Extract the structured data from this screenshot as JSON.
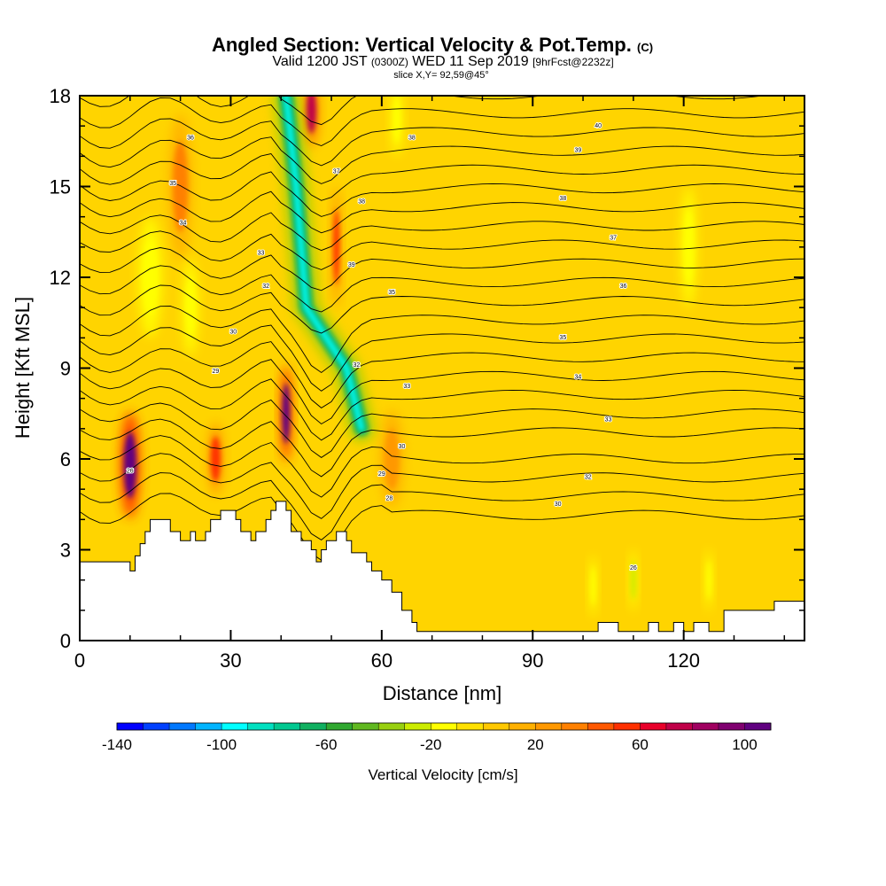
{
  "chart_data": {
    "type": "heatmap",
    "title": "Angled Section: Vertical Velocity & Pot.Temp.",
    "title_suffix": "(C)",
    "subtitle_prefix": "Valid 1200 JST",
    "subtitle_zulu": "(0300Z)",
    "subtitle_date": "WED 11 Sep 2019",
    "subtitle_fcst": "[9hrFcst@2232z]",
    "slice_label": "slice X,Y= 92,59@45°",
    "xlabel": "Distance [nm]",
    "ylabel": "Height [Kft MSL]",
    "xlim": [
      0,
      144
    ],
    "ylim": [
      0,
      18
    ],
    "x_ticks": [
      "0",
      "30",
      "60",
      "90",
      "120"
    ],
    "x_tick_values": [
      0,
      30,
      60,
      90,
      120
    ],
    "y_ticks": [
      "0",
      "3",
      "6",
      "9",
      "12",
      "15",
      "18"
    ],
    "y_tick_values": [
      0,
      3,
      6,
      9,
      12,
      15,
      18
    ],
    "colorbar": {
      "title": "Vertical Velocity [cm/s]",
      "min": -140,
      "max": 110,
      "step": 10,
      "tick_labels": [
        "-140",
        "-100",
        "-60",
        "-20",
        "20",
        "60",
        "100"
      ],
      "tick_values": [
        -140,
        -100,
        -60,
        -20,
        20,
        60,
        100
      ],
      "colors": [
        "#0000ff",
        "#0040ff",
        "#0078ff",
        "#00b4ff",
        "#00ffff",
        "#00e0c0",
        "#00c890",
        "#10b060",
        "#30a830",
        "#60b820",
        "#98d010",
        "#ccec00",
        "#ffff00",
        "#ffe000",
        "#ffc800",
        "#ffb000",
        "#ff9800",
        "#ff8000",
        "#ff5800",
        "#ff3000",
        "#e8002a",
        "#c00048",
        "#a00060",
        "#800070",
        "#600080"
      ]
    },
    "vertical_velocity_features": [
      {
        "x": 10,
        "y": 5.8,
        "w": 2.5,
        "h": 2.2,
        "value": 100
      },
      {
        "x": 27,
        "y": 6.0,
        "w": 2,
        "h": 1.5,
        "value": 50
      },
      {
        "x": 41,
        "y": 7.5,
        "w": 1.5,
        "h": 2.0,
        "value": 100
      },
      {
        "x": 46,
        "y": 17.5,
        "w": 2,
        "h": 1.5,
        "value": 70
      },
      {
        "x": 51,
        "y": 13,
        "w": 1.2,
        "h": 2.5,
        "value": 50
      },
      {
        "x": 20,
        "y": 15,
        "w": 3,
        "h": 3,
        "value": 30
      },
      {
        "x": 62,
        "y": 6,
        "w": 3,
        "h": 2,
        "value": 20
      },
      {
        "x": 14,
        "y": 12,
        "w": 3,
        "h": 2.5,
        "value": -20
      },
      {
        "x": 22,
        "y": 11,
        "w": 2,
        "h": 2,
        "value": -20
      },
      {
        "x": 121,
        "y": 13,
        "w": 2,
        "h": 2.5,
        "value": -20
      },
      {
        "x": 63,
        "y": 17.2,
        "w": 1.5,
        "h": 1.5,
        "value": -20
      },
      {
        "x": 102,
        "y": 1.8,
        "w": 1,
        "h": 1.3,
        "value": -20
      },
      {
        "x": 110,
        "y": 2.0,
        "w": 1,
        "h": 1.3,
        "value": -30
      },
      {
        "x": 125,
        "y": 2.0,
        "w": 1,
        "h": 1.3,
        "value": -20
      }
    ],
    "downdraft_band": {
      "value_max": -100,
      "path": [
        [
          41,
          18
        ],
        [
          43,
          15
        ],
        [
          45,
          11
        ],
        [
          49,
          10
        ],
        [
          53,
          9
        ],
        [
          56,
          7
        ]
      ]
    },
    "theta_contours": {
      "labels": [
        {
          "x": 10,
          "y": 5.6,
          "text": "26"
        },
        {
          "x": 27,
          "y": 8.9,
          "text": "29"
        },
        {
          "x": 30.5,
          "y": 10.2,
          "text": "30"
        },
        {
          "x": 37,
          "y": 11.7,
          "text": "32"
        },
        {
          "x": 36,
          "y": 12.8,
          "text": "33"
        },
        {
          "x": 20.5,
          "y": 13.8,
          "text": "34"
        },
        {
          "x": 18.5,
          "y": 15.1,
          "text": "35"
        },
        {
          "x": 22,
          "y": 16.6,
          "text": "36"
        },
        {
          "x": 51,
          "y": 15.5,
          "text": "37"
        },
        {
          "x": 56,
          "y": 14.5,
          "text": "38"
        },
        {
          "x": 54,
          "y": 12.4,
          "text": "39"
        },
        {
          "x": 55,
          "y": 9.1,
          "text": "32"
        },
        {
          "x": 65,
          "y": 8.4,
          "text": "33"
        },
        {
          "x": 64,
          "y": 6.4,
          "text": "30"
        },
        {
          "x": 60,
          "y": 5.5,
          "text": "29"
        },
        {
          "x": 61.5,
          "y": 4.7,
          "text": "28"
        },
        {
          "x": 62,
          "y": 11.5,
          "text": "35"
        },
        {
          "x": 66,
          "y": 16.6,
          "text": "38"
        },
        {
          "x": 96,
          "y": 10.0,
          "text": "35"
        },
        {
          "x": 99,
          "y": 8.7,
          "text": "34"
        },
        {
          "x": 105,
          "y": 7.3,
          "text": "33"
        },
        {
          "x": 101,
          "y": 5.4,
          "text": "32"
        },
        {
          "x": 95,
          "y": 4.5,
          "text": "30"
        },
        {
          "x": 108,
          "y": 11.7,
          "text": "36"
        },
        {
          "x": 106,
          "y": 13.3,
          "text": "37"
        },
        {
          "x": 96,
          "y": 14.6,
          "text": "38"
        },
        {
          "x": 99,
          "y": 16.2,
          "text": "39"
        },
        {
          "x": 103,
          "y": 17.0,
          "text": "40"
        },
        {
          "x": 110,
          "y": 2.4,
          "text": "26"
        }
      ]
    },
    "terrain_kft": [
      [
        0,
        2.6
      ],
      [
        5,
        2.6
      ],
      [
        10,
        2.6
      ],
      [
        10,
        2.3
      ],
      [
        11,
        2.3
      ],
      [
        11,
        2.8
      ],
      [
        12,
        2.8
      ],
      [
        12,
        3.2
      ],
      [
        13,
        3.2
      ],
      [
        13,
        3.6
      ],
      [
        14,
        3.6
      ],
      [
        14,
        4.0
      ],
      [
        18,
        4.0
      ],
      [
        18,
        3.6
      ],
      [
        20,
        3.6
      ],
      [
        20,
        3.3
      ],
      [
        22,
        3.3
      ],
      [
        22,
        3.6
      ],
      [
        23,
        3.6
      ],
      [
        23,
        3.3
      ],
      [
        25,
        3.3
      ],
      [
        25,
        3.6
      ],
      [
        26,
        3.6
      ],
      [
        26,
        4.0
      ],
      [
        28,
        4.0
      ],
      [
        28,
        4.3
      ],
      [
        31,
        4.3
      ],
      [
        31,
        4.0
      ],
      [
        32,
        4.0
      ],
      [
        32,
        3.6
      ],
      [
        34,
        3.6
      ],
      [
        34,
        3.3
      ],
      [
        35,
        3.3
      ],
      [
        35,
        3.6
      ],
      [
        37,
        3.6
      ],
      [
        37,
        4.0
      ],
      [
        38,
        4.0
      ],
      [
        38,
        4.3
      ],
      [
        39,
        4.3
      ],
      [
        39,
        4.6
      ],
      [
        41,
        4.6
      ],
      [
        41,
        4.3
      ],
      [
        42,
        4.3
      ],
      [
        42,
        3.6
      ],
      [
        44,
        3.6
      ],
      [
        44,
        3.3
      ],
      [
        46,
        3.3
      ],
      [
        46,
        3.0
      ],
      [
        47,
        3.0
      ],
      [
        47,
        2.6
      ],
      [
        48,
        2.6
      ],
      [
        48,
        3.0
      ],
      [
        49,
        3.0
      ],
      [
        49,
        3.3
      ],
      [
        51,
        3.3
      ],
      [
        51,
        3.6
      ],
      [
        53,
        3.6
      ],
      [
        53,
        3.3
      ],
      [
        54,
        3.3
      ],
      [
        54,
        2.9
      ],
      [
        57,
        2.9
      ],
      [
        57,
        2.6
      ],
      [
        58,
        2.6
      ],
      [
        58,
        2.3
      ],
      [
        60,
        2.3
      ],
      [
        60,
        2.0
      ],
      [
        62,
        2.0
      ],
      [
        62,
        1.6
      ],
      [
        64,
        1.6
      ],
      [
        64,
        1.0
      ],
      [
        66,
        1.0
      ],
      [
        66,
        0.6
      ],
      [
        67,
        0.6
      ],
      [
        67,
        0.3
      ],
      [
        103,
        0.3
      ],
      [
        103,
        0.6
      ],
      [
        107,
        0.6
      ],
      [
        107,
        0.3
      ],
      [
        113,
        0.3
      ],
      [
        113,
        0.6
      ],
      [
        115,
        0.6
      ],
      [
        115,
        0.3
      ],
      [
        118,
        0.3
      ],
      [
        118,
        0.6
      ],
      [
        120,
        0.6
      ],
      [
        120,
        0.3
      ],
      [
        122,
        0.3
      ],
      [
        122,
        0.6
      ],
      [
        125,
        0.6
      ],
      [
        125,
        0.3
      ],
      [
        128,
        0.3
      ],
      [
        128,
        0.6
      ],
      [
        128,
        1.0
      ],
      [
        138,
        1.0
      ],
      [
        138,
        1.3
      ],
      [
        144,
        1.3
      ]
    ]
  }
}
